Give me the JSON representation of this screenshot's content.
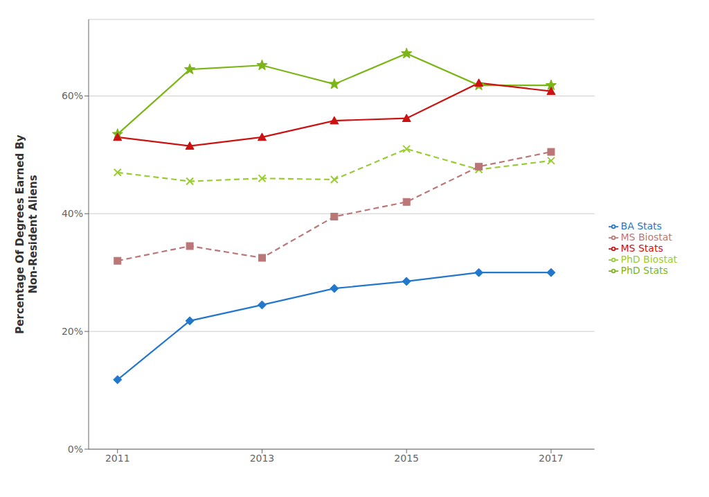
{
  "chart_data": {
    "type": "line",
    "ylabel": "Percentage Of Degrees Earned By\nNon-Resident Aliens",
    "x": [
      2011,
      2012,
      2013,
      2014,
      2015,
      2016,
      2017
    ],
    "xlim": [
      2010.6,
      2017.6
    ],
    "xticks": [
      2011,
      2013,
      2015,
      2017
    ],
    "ylim": [
      0,
      0.73
    ],
    "yticks": [
      {
        "value": 0.0,
        "label": "0%"
      },
      {
        "value": 0.2,
        "label": "20%"
      },
      {
        "value": 0.4,
        "label": "40%"
      },
      {
        "value": 0.6,
        "label": "60%"
      }
    ],
    "grid": true,
    "legend": "right",
    "series": [
      {
        "name": "PhD Stats",
        "color": "#7CB518",
        "marker": "star",
        "line_style": "solid",
        "values": [
          0.535,
          0.645,
          0.652,
          0.62,
          0.672,
          0.618,
          0.618
        ]
      },
      {
        "name": "MS Stats",
        "color": "#CC1111",
        "marker": "triangle",
        "line_style": "solid",
        "values": [
          0.53,
          0.515,
          0.53,
          0.558,
          0.562,
          0.622,
          0.608
        ]
      },
      {
        "name": "PhD Biostat",
        "color": "#99CC33",
        "marker": "x",
        "line_style": "dashed",
        "values": [
          0.47,
          0.455,
          0.46,
          0.458,
          0.51,
          0.475,
          0.49
        ]
      },
      {
        "name": "MS Biostat",
        "color": "#BB7777",
        "marker": "square",
        "line_style": "dashed",
        "values": [
          0.32,
          0.345,
          0.325,
          0.395,
          0.42,
          0.48,
          0.505
        ]
      },
      {
        "name": "BA Stats",
        "color": "#2277CC",
        "marker": "diamond",
        "line_style": "solid",
        "values": [
          0.118,
          0.218,
          0.245,
          0.273,
          0.285,
          0.3,
          0.3
        ]
      }
    ]
  }
}
